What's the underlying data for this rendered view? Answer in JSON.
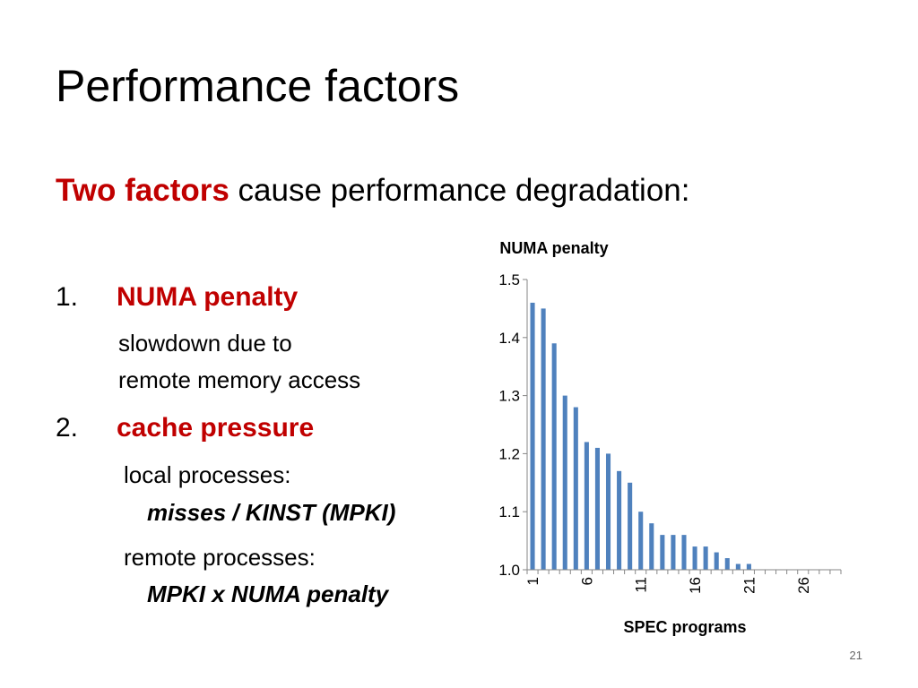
{
  "slide": {
    "title": "Performance factors",
    "subtitle_highlight": "Two factors",
    "subtitle_rest": " cause performance degradation:",
    "items": [
      {
        "number": "1.",
        "heading": "NUMA penalty",
        "lines": [
          "slowdown due to",
          "remote memory access"
        ]
      },
      {
        "number": "2.",
        "heading": "cache pressure",
        "lines": [
          "local processes:",
          "misses / KINST (MPKI)",
          "remote processes:",
          "MPKI x NUMA penalty"
        ]
      }
    ],
    "page_number": "21"
  },
  "colors": {
    "accent": "#c00000",
    "bar": "#4f81bd"
  },
  "chart_data": {
    "type": "bar",
    "title": "NUMA penalty",
    "xlabel": "SPEC programs",
    "ylabel": "",
    "ylim": [
      1.0,
      1.5
    ],
    "yticks": [
      "1.0",
      "1.1",
      "1.2",
      "1.3",
      "1.4",
      "1.5"
    ],
    "x": [
      1,
      2,
      3,
      4,
      5,
      6,
      7,
      8,
      9,
      10,
      11,
      12,
      13,
      14,
      15,
      16,
      17,
      18,
      19,
      20,
      21,
      22,
      23,
      24,
      25,
      26,
      27,
      28,
      29
    ],
    "xtick_labels": [
      "1",
      "6",
      "11",
      "16",
      "21",
      "26"
    ],
    "values": [
      1.46,
      1.45,
      1.39,
      1.3,
      1.28,
      1.22,
      1.21,
      1.2,
      1.17,
      1.15,
      1.1,
      1.08,
      1.06,
      1.06,
      1.06,
      1.04,
      1.04,
      1.03,
      1.02,
      1.01,
      1.01,
      1.0,
      1.0,
      1.0,
      1.0,
      1.0,
      1.0,
      1.0,
      1.0
    ],
    "legend": "none",
    "grid": false
  }
}
